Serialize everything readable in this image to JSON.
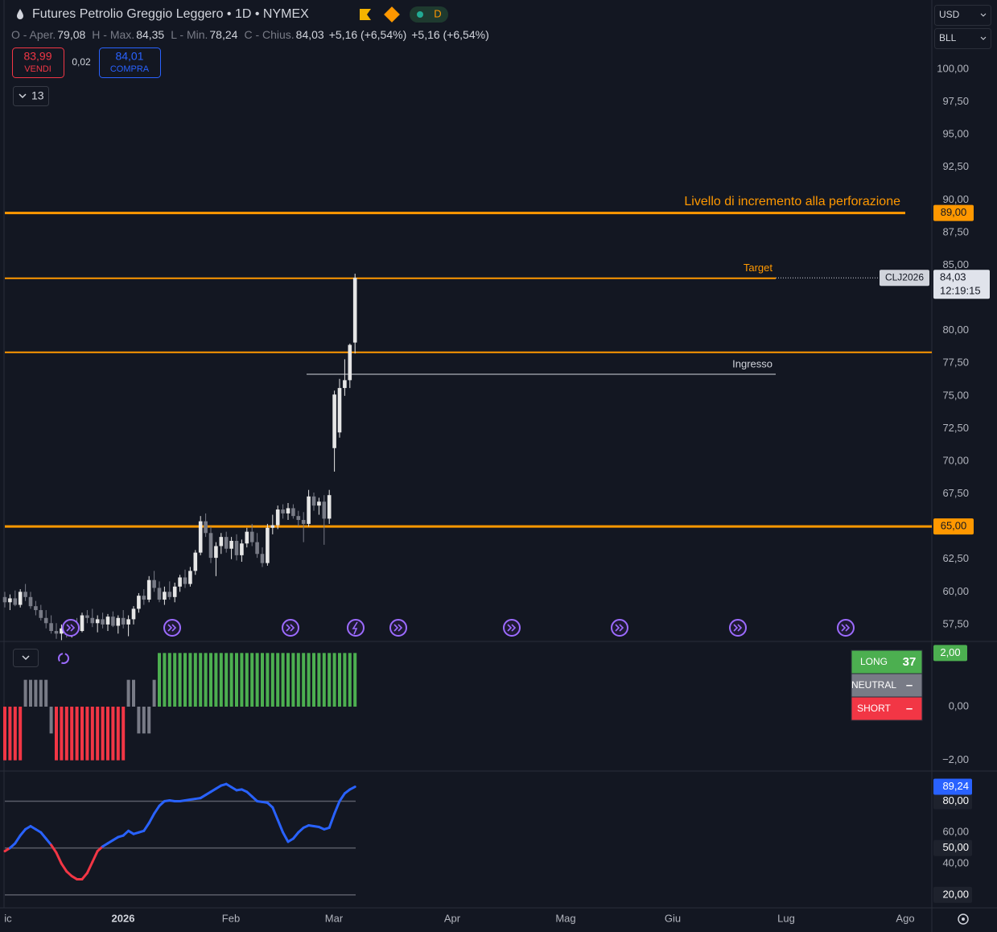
{
  "header": {
    "title": "Futures Petrolio Greggio Leggero • 1D • NYMEX",
    "interval_badge": "D",
    "ohlc": [
      {
        "label": "O - Aper.",
        "value": "79,08"
      },
      {
        "label": "H - Max.",
        "value": "84,35"
      },
      {
        "label": "L - Min.",
        "value": "78,24"
      },
      {
        "label": "C - Chius.",
        "value": "84,03"
      }
    ],
    "change": [
      "+5,16 (+6,54%)",
      "+5,16 (+6,54%)"
    ],
    "sell": {
      "price": "83,99",
      "label": "VENDI"
    },
    "spread": "0,02",
    "buy": {
      "price": "84,01",
      "label": "COMPRA"
    },
    "indicator_count": "13",
    "currency": "USD",
    "unit": "BLL"
  },
  "chart_data": [
    {
      "type": "candlestick",
      "ylim": [
        56.2,
        105.3
      ],
      "yticks": [
        {
          "value": 57.5,
          "label": "57,50"
        },
        {
          "value": 60,
          "label": "60,00"
        },
        {
          "value": 62.5,
          "label": "62,50"
        },
        {
          "value": 65,
          "label": "65,00"
        },
        {
          "value": 67.5,
          "label": "67,50"
        },
        {
          "value": 70,
          "label": "70,00"
        },
        {
          "value": 72.5,
          "label": "72,50"
        },
        {
          "value": 75,
          "label": "75,00"
        },
        {
          "value": 77.5,
          "label": "77,50"
        },
        {
          "value": 80,
          "label": "80,00"
        },
        {
          "value": 85,
          "label": "85,00"
        },
        {
          "value": 87.5,
          "label": "87,50"
        },
        {
          "value": 90,
          "label": "90,00"
        },
        {
          "value": 92.5,
          "label": "92,50"
        },
        {
          "value": 95,
          "label": "95,00"
        },
        {
          "value": 97.5,
          "label": "97,50"
        },
        {
          "value": 100,
          "label": "100,00"
        }
      ],
      "up_color": "#e6e6e6",
      "down_color": "#787b86",
      "candles": [
        [
          59.6,
          60.0,
          58.8,
          59.2
        ],
        [
          59.2,
          59.8,
          58.6,
          59.5
        ],
        [
          59.5,
          60.1,
          58.9,
          59.0
        ],
        [
          59.0,
          60.2,
          58.8,
          60.0
        ],
        [
          60.0,
          60.6,
          59.3,
          59.6
        ],
        [
          59.6,
          60.0,
          58.7,
          58.9
        ],
        [
          58.9,
          59.3,
          58.2,
          58.6
        ],
        [
          58.6,
          59.0,
          57.8,
          58.0
        ],
        [
          58.0,
          58.6,
          57.2,
          57.6
        ],
        [
          57.6,
          58.2,
          56.8,
          57.0
        ],
        [
          57.0,
          57.6,
          56.4,
          56.8
        ],
        [
          56.8,
          57.5,
          56.3,
          57.2
        ],
        [
          57.2,
          57.6,
          56.5,
          56.7
        ],
        [
          56.7,
          57.8,
          56.5,
          57.5
        ],
        [
          57.5,
          58.0,
          56.8,
          57.0
        ],
        [
          57.0,
          58.4,
          56.9,
          58.2
        ],
        [
          58.2,
          58.6,
          57.6,
          58.0
        ],
        [
          58.0,
          58.7,
          57.3,
          57.6
        ],
        [
          57.6,
          58.2,
          56.9,
          57.9
        ],
        [
          57.9,
          58.4,
          57.2,
          57.5
        ],
        [
          57.5,
          58.3,
          57.0,
          58.1
        ],
        [
          58.1,
          58.5,
          57.3,
          57.4
        ],
        [
          57.4,
          58.2,
          56.8,
          58.0
        ],
        [
          58.0,
          58.6,
          57.2,
          57.5
        ],
        [
          57.5,
          58.2,
          56.6,
          57.9
        ],
        [
          57.9,
          58.9,
          57.5,
          58.7
        ],
        [
          58.7,
          59.9,
          58.4,
          59.7
        ],
        [
          59.7,
          60.2,
          59.0,
          59.4
        ],
        [
          59.4,
          61.2,
          59.2,
          60.9
        ],
        [
          60.9,
          61.6,
          60.0,
          60.3
        ],
        [
          60.3,
          60.8,
          59.2,
          59.4
        ],
        [
          59.4,
          60.4,
          59.0,
          60.0
        ],
        [
          60.0,
          60.8,
          59.4,
          59.6
        ],
        [
          59.6,
          60.7,
          59.2,
          60.4
        ],
        [
          60.4,
          61.3,
          60.0,
          61.1
        ],
        [
          61.1,
          61.7,
          60.3,
          60.6
        ],
        [
          60.6,
          61.9,
          60.4,
          61.6
        ],
        [
          61.6,
          63.2,
          61.3,
          63.0
        ],
        [
          63.0,
          65.8,
          62.8,
          65.4
        ],
        [
          65.4,
          66.0,
          64.2,
          64.5
        ],
        [
          64.5,
          65.0,
          62.2,
          62.6
        ],
        [
          62.6,
          63.8,
          61.2,
          63.5
        ],
        [
          63.5,
          64.5,
          62.9,
          64.2
        ],
        [
          64.2,
          64.6,
          63.0,
          63.3
        ],
        [
          63.3,
          64.2,
          62.5,
          63.9
        ],
        [
          63.9,
          64.4,
          62.4,
          62.8
        ],
        [
          62.8,
          64.0,
          62.3,
          63.7
        ],
        [
          63.7,
          64.9,
          63.4,
          64.6
        ],
        [
          64.6,
          65.2,
          63.5,
          63.8
        ],
        [
          63.8,
          64.5,
          62.6,
          62.9
        ],
        [
          62.9,
          63.4,
          61.9,
          62.2
        ],
        [
          62.2,
          65.2,
          62.0,
          64.9
        ],
        [
          64.9,
          65.9,
          64.4,
          65.1
        ],
        [
          65.1,
          66.6,
          64.8,
          66.3
        ],
        [
          66.3,
          66.7,
          65.6,
          66.0
        ],
        [
          66.0,
          66.8,
          65.5,
          66.4
        ],
        [
          66.4,
          66.7,
          65.6,
          65.8
        ],
        [
          65.8,
          66.2,
          65.0,
          65.5
        ],
        [
          65.5,
          66.1,
          63.8,
          65.2
        ],
        [
          65.2,
          67.8,
          65.0,
          67.3
        ],
        [
          67.3,
          67.6,
          66.2,
          66.6
        ],
        [
          66.6,
          67.2,
          65.9,
          66.9
        ],
        [
          66.9,
          67.4,
          63.6,
          65.6
        ],
        [
          65.6,
          67.8,
          65.2,
          67.4
        ],
        [
          71.0,
          75.4,
          69.2,
          75.1
        ],
        [
          72.2,
          76.3,
          71.8,
          75.6
        ],
        [
          75.6,
          77.8,
          75.0,
          76.2
        ],
        [
          76.2,
          79.0,
          75.6,
          78.9
        ],
        [
          79.08,
          84.35,
          78.24,
          84.03
        ]
      ],
      "levels": [
        {
          "value": 89,
          "label": "89,00",
          "annotation": "Livello di incremento alla perforazione",
          "color": "#ff9800"
        },
        {
          "value": 84,
          "annotation": "Target",
          "color": "#ff9800"
        },
        {
          "value": 78.33,
          "color": "#ff9800"
        },
        {
          "value": 76.65,
          "annotation": "Ingresso",
          "color": "#d1d4dc"
        },
        {
          "value": 65,
          "label": "65,00",
          "color": "#ff9800"
        }
      ],
      "last_price": {
        "symbol": "CLJ2026",
        "value": 84.03,
        "label": "84,03",
        "countdown": "12:19:15"
      },
      "x_labels": [
        "ic",
        "2026",
        "Feb",
        "Mar",
        "Apr",
        "Mag",
        "Giu",
        "Lug",
        "Ago"
      ]
    },
    {
      "type": "bar",
      "ylim": [
        -2.37,
        2.4
      ],
      "yticks": [
        {
          "value": 0,
          "label": "0,00"
        },
        {
          "value": -2,
          "label": "−2,00"
        }
      ],
      "values": [
        -2,
        -2,
        -2,
        -2,
        1,
        1,
        1,
        1,
        1,
        -1,
        -2,
        -2,
        -2,
        -2,
        -2,
        -2,
        -2,
        -2,
        -2,
        -2,
        -2,
        -2,
        -2,
        -2,
        1,
        1,
        -1,
        -1,
        -1,
        1,
        2,
        2,
        2,
        2,
        2,
        2,
        2,
        2,
        2,
        2,
        2,
        2,
        2,
        2,
        2,
        2,
        2,
        2,
        2,
        2,
        2,
        2,
        2,
        2,
        2,
        2,
        2,
        2,
        2,
        2,
        2,
        2,
        2,
        2,
        2,
        2,
        2,
        2,
        2
      ],
      "last_label": "2,00",
      "colors": {
        "long": "#4caf50",
        "neutral": "#787b86",
        "short": "#f23645"
      },
      "signal_table": [
        {
          "label": "LONG",
          "count": 37
        },
        {
          "label": "NEUTRAL",
          "count": "–"
        },
        {
          "label": "SHORT",
          "count": "–"
        }
      ]
    },
    {
      "type": "line",
      "ylim": [
        12.7,
        98.8
      ],
      "yticks": [
        {
          "value": 80,
          "label": "80,00"
        },
        {
          "value": 60,
          "label": "60,00"
        },
        {
          "value": 50,
          "label": "50,00"
        },
        {
          "value": 40,
          "label": "40,00"
        },
        {
          "value": 20,
          "label": "20,00"
        }
      ],
      "bands": [
        80,
        50,
        20
      ],
      "values": [
        48,
        50,
        53,
        58,
        62,
        64,
        62,
        60,
        56,
        52,
        47,
        40,
        35,
        32,
        30,
        30,
        34,
        41,
        48,
        51,
        53,
        55,
        57,
        58,
        61,
        59,
        60,
        61,
        66,
        72,
        77,
        80,
        80.5,
        80,
        80,
        80.5,
        81,
        81.5,
        82,
        84,
        86,
        88,
        90,
        91,
        89,
        87,
        87.5,
        86,
        83,
        80,
        79.5,
        79,
        76,
        68,
        60,
        54,
        56,
        60,
        63,
        64.5,
        64,
        63.5,
        62,
        63,
        72,
        80,
        85,
        87.5,
        89.24
      ],
      "last_label": "89,24",
      "color": "#2962ff",
      "low_color": "#f23645",
      "threshold": 50
    }
  ]
}
